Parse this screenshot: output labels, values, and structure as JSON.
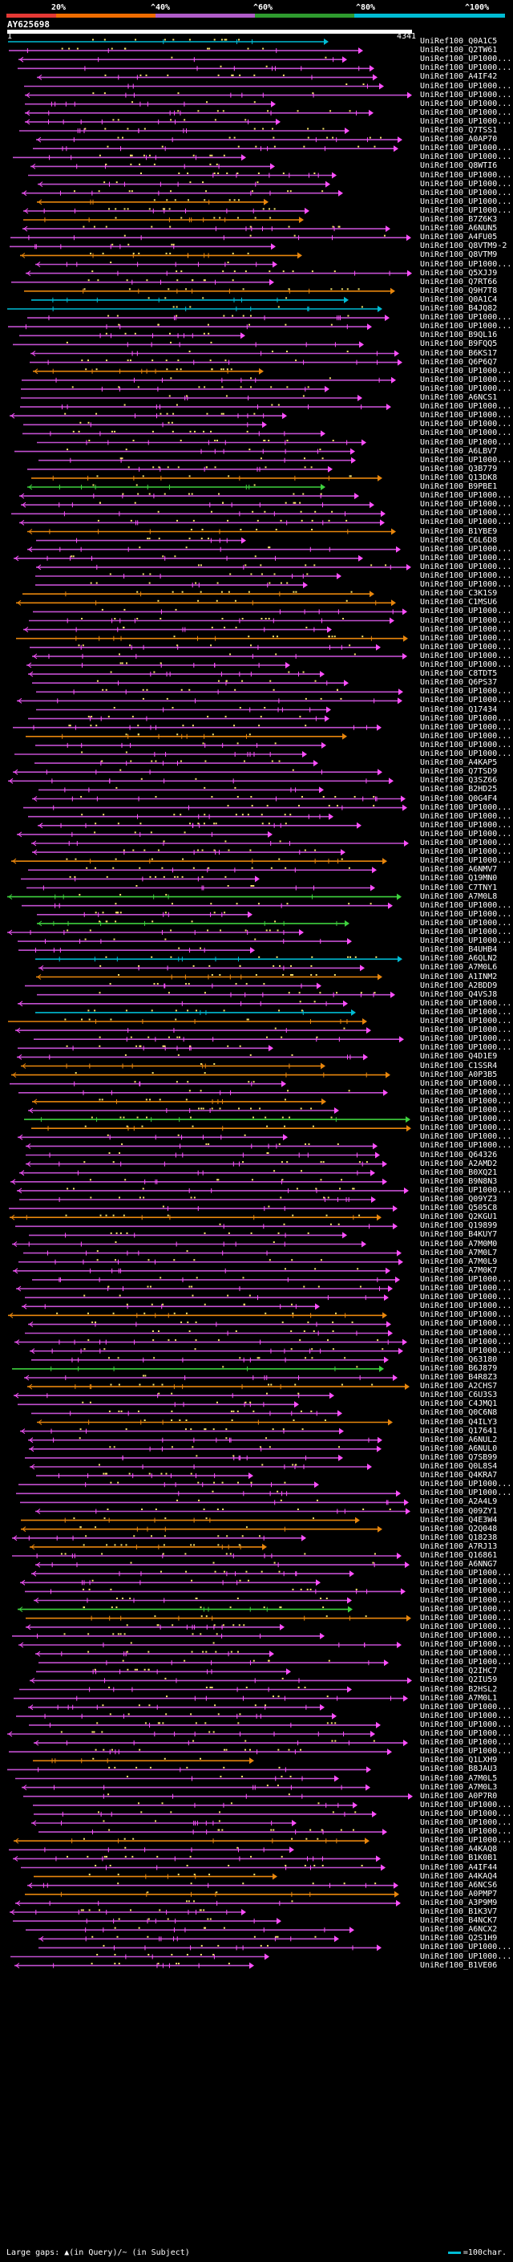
{
  "scale": {
    "labels": [
      "20%",
      "^40%",
      "^60%",
      "^80%",
      "^100%"
    ],
    "colors": [
      "#e53935",
      "#ef6c00",
      "#b05cc8",
      "#2e9b2e",
      "#00bcd4"
    ]
  },
  "query": {
    "id": "AY625698",
    "start": "1",
    "end": "4341",
    "length": 4341
  },
  "colors": {
    "cyan": "#00bcd4",
    "green": "#3ed13e",
    "orange": "#e8860c",
    "purple": "#c24fd0",
    "pink": "#ff4fff",
    "dots": "#f7e36a",
    "gap": "#ffffff"
  },
  "hits": [
    "UniRef100_Q0A1C5",
    "UniRef100_Q2TW61",
    "UniRef100_UP1000...",
    "UniRef100_UP1000...",
    "UniRef100_A4IF42",
    "UniRef100_UP1000...",
    "UniRef100_UP1000...",
    "UniRef100_UP1000...",
    "UniRef100_UP1000...",
    "UniRef100_UP1000...",
    "UniRef100_Q7TSS1",
    "UniRef100_A0AP70",
    "UniRef100_UP1000...",
    "UniRef100_UP1000...",
    "UniRef100_Q8WTI6",
    "UniRef100_UP1000...",
    "UniRef100_UP1000...",
    "UniRef100_UP1000...",
    "UniRef100_UP1000...",
    "UniRef100_UP1000...",
    "UniRef100_B7Z6K3",
    "UniRef100_A6NUN5",
    "UniRef100_A4FU05",
    "UniRef100_Q8VTM9-2",
    "UniRef100_Q8VTM9",
    "UniRef100_UP1000...",
    "UniRef100_Q5XJJ9",
    "UniRef100_Q7RT66",
    "UniRef100_Q9H7T8",
    "UniRef100_Q0A1C4",
    "UniRef100_B4JQ82",
    "UniRef100_UP1000...",
    "UniRef100_UP1000...",
    "UniRef100_B9QL16",
    "UniRef100_B9FQQ5",
    "UniRef100_B6KS17",
    "UniRef100_Q6P6Q7",
    "UniRef100_UP1000...",
    "UniRef100_UP1000...",
    "UniRef100_UP1000...",
    "UniRef100_A6NCS1",
    "UniRef100_UP1000...",
    "UniRef100_UP1000...",
    "UniRef100_UP1000...",
    "UniRef100_UP1000...",
    "UniRef100_UP1000...",
    "UniRef100_A6LBV7",
    "UniRef100_UP1000...",
    "UniRef100_Q3B779",
    "UniRef100_Q13DK8",
    "UniRef100_B9PBE1",
    "UniRef100_UP1000...",
    "UniRef100_UP1000...",
    "UniRef100_UP1000...",
    "UniRef100_UP1000...",
    "UniRef100_B1YBE9",
    "UniRef100_C6L6D8",
    "UniRef100_UP1000...",
    "UniRef100_UP1000...",
    "UniRef100_UP1000...",
    "UniRef100_UP1000...",
    "UniRef100_UP1000...",
    "UniRef100_C3K1S9",
    "UniRef100_C1MSU6",
    "UniRef100_UP1000...",
    "UniRef100_UP1000...",
    "UniRef100_UP1000...",
    "UniRef100_UP1000...",
    "UniRef100_UP1000...",
    "UniRef100_UP1000...",
    "UniRef100_UP1000...",
    "UniRef100_C8TDT5",
    "UniRef100_Q6PS37",
    "UniRef100_UP1000...",
    "UniRef100_UP1000...",
    "UniRef100_Q17434",
    "UniRef100_UP1000...",
    "UniRef100_UP1000...",
    "UniRef100_UP1000...",
    "UniRef100_UP1000...",
    "UniRef100_UP1000...",
    "UniRef100_A4KAP5",
    "UniRef100_Q7TSD9",
    "UniRef100_Q3SZ66",
    "UniRef100_B2HD25",
    "UniRef100_Q0G4F4",
    "UniRef100_UP1000...",
    "UniRef100_UP1000...",
    "UniRef100_UP1000...",
    "UniRef100_UP1000...",
    "UniRef100_UP1000...",
    "UniRef100_UP1000...",
    "UniRef100_UP1000...",
    "UniRef100_A6NMV7",
    "UniRef100_Q19MN0",
    "UniRef100_C7TNY1",
    "UniRef100_A7M0L8",
    "UniRef100_UP1000...",
    "UniRef100_UP1000...",
    "UniRef100_UP1000...",
    "UniRef100_UP1000...",
    "UniRef100_UP1000...",
    "UniRef100_B4UHB4",
    "UniRef100_A6QLN2",
    "UniRef100_A7M0L6",
    "UniRef100_A1INM2",
    "UniRef100_A2BDD9",
    "UniRef100_Q4VSJ8",
    "UniRef100_UP1000...",
    "UniRef100_UP1000...",
    "UniRef100_UP1000...",
    "UniRef100_UP1000...",
    "UniRef100_UP1000...",
    "UniRef100_UP1000...",
    "UniRef100_Q4D1E9",
    "UniRef100_C1SSR4",
    "UniRef100_A0P3B5",
    "UniRef100_UP1000...",
    "UniRef100_UP1000...",
    "UniRef100_UP1000...",
    "UniRef100_UP1000...",
    "UniRef100_UP1000...",
    "UniRef100_UP1000...",
    "UniRef100_UP1000...",
    "UniRef100_UP1000...",
    "UniRef100_Q64326",
    "UniRef100_A2AMD2",
    "UniRef100_B0XQ21",
    "UniRef100_B9N8N3",
    "UniRef100_UP1000...",
    "UniRef100_Q09YZ3",
    "UniRef100_Q505C8",
    "UniRef100_Q2KGU1",
    "UniRef100_Q19899",
    "UniRef100_B4KUY7",
    "UniRef100_A7M0M0",
    "UniRef100_A7M0L7",
    "UniRef100_A7M0L9",
    "UniRef100_A7M0K7",
    "UniRef100_UP1000...",
    "UniRef100_UP1000...",
    "UniRef100_UP1000...",
    "UniRef100_UP1000...",
    "UniRef100_UP1000...",
    "UniRef100_UP1000...",
    "UniRef100_UP1000...",
    "UniRef100_UP1000...",
    "UniRef100_UP1000...",
    "UniRef100_Q63180",
    "UniRef100_B6J879",
    "UniRef100_B4R8Z3",
    "UniRef100_A2CHS7",
    "UniRef100_C6U3S3",
    "UniRef100_C4JMQ1",
    "UniRef100_Q0C6N8",
    "UniRef100_Q4ILY3",
    "UniRef100_Q17641",
    "UniRef100_A6NUL2",
    "UniRef100_A6NUL0",
    "UniRef100_Q7SB99",
    "UniRef100_Q0L8S4",
    "UniRef100_Q4KRA7",
    "UniRef100_UP1000...",
    "UniRef100_UP1000...",
    "UniRef100_A2A4L9",
    "UniRef100_Q09ZY1",
    "UniRef100_Q4E3W4",
    "UniRef100_Q2Q048",
    "UniRef100_Q18238",
    "UniRef100_A7RJ13",
    "UniRef100_Q16861",
    "UniRef100_A6NNG7",
    "UniRef100_UP1000...",
    "UniRef100_UP1000...",
    "UniRef100_UP1000...",
    "UniRef100_UP1000...",
    "UniRef100_UP1000...",
    "UniRef100_UP1000...",
    "UniRef100_UP1000...",
    "UniRef100_UP1000...",
    "UniRef100_UP1000...",
    "UniRef100_UP1000...",
    "UniRef100_UP1000...",
    "UniRef100_Q2IHC7",
    "UniRef100_Q2IU59",
    "UniRef100_B2HSL2",
    "UniRef100_A7M0L1",
    "UniRef100_UP1000...",
    "UniRef100_UP1000...",
    "UniRef100_UP1000...",
    "UniRef100_UP1000...",
    "UniRef100_UP1000...",
    "UniRef100_UP1000...",
    "UniRef100_Q1LXH9",
    "UniRef100_B8JAU3",
    "UniRef100_A7M0L5",
    "UniRef100_A7M0L3",
    "UniRef100_A0P7R0",
    "UniRef100_UP1000...",
    "UniRef100_UP1000...",
    "UniRef100_UP1000...",
    "UniRef100_UP1000...",
    "UniRef100_UP1000...",
    "UniRef100_A4KAQ8",
    "UniRef100_B1K0B1",
    "UniRef100_A4IF44",
    "UniRef100_A4KAQ4",
    "UniRef100_A6NCS6",
    "UniRef100_A0PMP7",
    "UniRef100_A3P9M9",
    "UniRef100_B1K3V7",
    "UniRef100_B4NCK7",
    "UniRef100_A6NCX2",
    "UniRef100_Q2S1H9",
    "UniRef100_UP1000...",
    "UniRef100_UP1000...",
    "UniRef100_B1VE06"
  ],
  "footer": {
    "left": "Large gaps: ▲(in Query)/~ (in Subject)",
    "right": "=100char."
  }
}
